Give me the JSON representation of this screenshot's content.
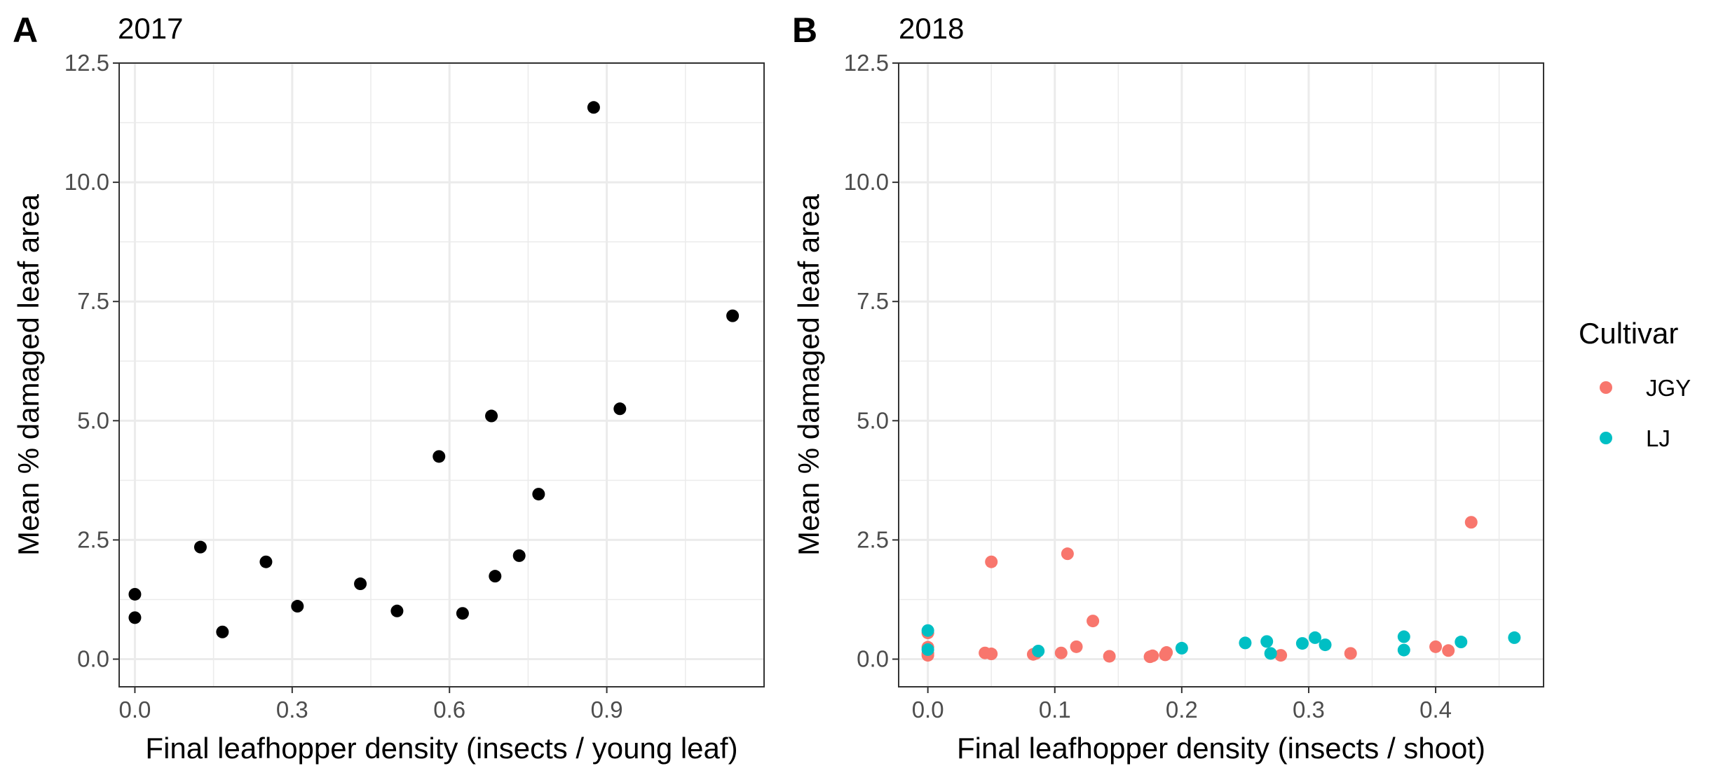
{
  "chart_data": [
    {
      "type": "scatter",
      "tag": "A",
      "title": "2017",
      "xlabel": "Final leafhopper density (insects / young leaf)",
      "ylabel": "Mean % damaged leaf area",
      "xlim": [
        -0.03,
        1.2
      ],
      "ylim": [
        -0.58,
        12.5
      ],
      "xticks": [
        0.0,
        0.3,
        0.6,
        0.9
      ],
      "xtick_labels": [
        "0.0",
        "0.3",
        "0.6",
        "0.9"
      ],
      "yticks": [
        0.0,
        2.5,
        5.0,
        7.5,
        10.0,
        12.5
      ],
      "ytick_labels": [
        "0.0",
        "2.5",
        "5.0",
        "7.5",
        "10.0",
        "12.5"
      ],
      "grid": true,
      "series": [
        {
          "color": "#000000",
          "points": [
            [
              0.0,
              1.36
            ],
            [
              0.0,
              0.87
            ],
            [
              0.125,
              2.35
            ],
            [
              0.167,
              0.57
            ],
            [
              0.25,
              2.04
            ],
            [
              0.31,
              1.11
            ],
            [
              0.43,
              1.58
            ],
            [
              0.5,
              1.01
            ],
            [
              0.58,
              4.25
            ],
            [
              0.625,
              0.96
            ],
            [
              0.68,
              5.1
            ],
            [
              0.687,
              1.74
            ],
            [
              0.733,
              2.17
            ],
            [
              0.77,
              3.46
            ],
            [
              0.875,
              11.57
            ],
            [
              0.925,
              5.25
            ],
            [
              1.14,
              7.2
            ]
          ]
        }
      ]
    },
    {
      "type": "scatter",
      "tag": "B",
      "title": "2018",
      "xlabel": "Final leafhopper density (insects / shoot)",
      "ylabel": "Mean % damaged leaf area",
      "xlim": [
        -0.023,
        0.485
      ],
      "ylim": [
        -0.58,
        12.5
      ],
      "xticks": [
        0.0,
        0.1,
        0.2,
        0.3,
        0.4
      ],
      "xtick_labels": [
        "0.0",
        "0.1",
        "0.2",
        "0.3",
        "0.4"
      ],
      "yticks": [
        0.0,
        2.5,
        5.0,
        7.5,
        10.0,
        12.5
      ],
      "ytick_labels": [
        "0.0",
        "2.5",
        "5.0",
        "7.5",
        "10.0",
        "12.5"
      ],
      "grid": true,
      "legend": {
        "title": "Cultivar",
        "placement": "right"
      },
      "series": [
        {
          "name": "JGY",
          "color": "#f8766d",
          "points": [
            [
              0.0,
              0.55
            ],
            [
              0.0,
              0.25
            ],
            [
              0.0,
              0.12
            ],
            [
              0.0,
              0.08
            ],
            [
              0.045,
              0.13
            ],
            [
              0.05,
              0.11
            ],
            [
              0.05,
              2.04
            ],
            [
              0.083,
              0.1
            ],
            [
              0.085,
              0.12
            ],
            [
              0.105,
              0.13
            ],
            [
              0.11,
              2.21
            ],
            [
              0.117,
              0.26
            ],
            [
              0.13,
              0.8
            ],
            [
              0.143,
              0.06
            ],
            [
              0.175,
              0.05
            ],
            [
              0.177,
              0.07
            ],
            [
              0.187,
              0.09
            ],
            [
              0.188,
              0.14
            ],
            [
              0.278,
              0.08
            ],
            [
              0.333,
              0.12
            ],
            [
              0.4,
              0.26
            ],
            [
              0.41,
              0.18
            ],
            [
              0.428,
              2.87
            ]
          ]
        },
        {
          "name": "LJ",
          "color": "#00bfc4",
          "points": [
            [
              0.0,
              0.6
            ],
            [
              0.0,
              0.2
            ],
            [
              0.087,
              0.17
            ],
            [
              0.2,
              0.23
            ],
            [
              0.25,
              0.34
            ],
            [
              0.267,
              0.37
            ],
            [
              0.27,
              0.12
            ],
            [
              0.295,
              0.33
            ],
            [
              0.305,
              0.45
            ],
            [
              0.313,
              0.3
            ],
            [
              0.375,
              0.47
            ],
            [
              0.375,
              0.19
            ],
            [
              0.42,
              0.36
            ],
            [
              0.462,
              0.45
            ]
          ]
        }
      ]
    }
  ]
}
